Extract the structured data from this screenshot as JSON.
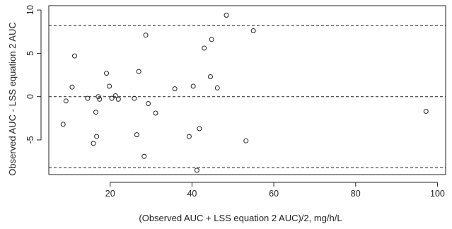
{
  "chart_data": {
    "type": "scatter",
    "title": "",
    "xlabel": "(Observed AUC + LSS equation 2 AUC)/2, mg/h/L",
    "ylabel": "Observed AUC - LSS equation 2 AUC",
    "xlim": [
      5,
      102
    ],
    "ylim": [
      -9,
      10.5
    ],
    "xticks": [
      20,
      40,
      60,
      80,
      100
    ],
    "yticks": [
      -5,
      0,
      5,
      10
    ],
    "grid": false,
    "reference_lines": [
      {
        "name": "upper limit of agreement",
        "y": 8.2,
        "style": "dashed"
      },
      {
        "name": "mean difference",
        "y": 0.0,
        "style": "dashed"
      },
      {
        "name": "lower limit of agreement",
        "y": -8.2,
        "style": "dashed"
      }
    ],
    "marker": "open-circle",
    "points": [
      {
        "x": 8.5,
        "y": -3.2
      },
      {
        "x": 9.2,
        "y": -0.5
      },
      {
        "x": 10.7,
        "y": 1.1
      },
      {
        "x": 11.3,
        "y": 4.7
      },
      {
        "x": 14.5,
        "y": -0.2
      },
      {
        "x": 15.9,
        "y": -5.4
      },
      {
        "x": 16.5,
        "y": -1.8
      },
      {
        "x": 16.7,
        "y": -4.6
      },
      {
        "x": 17.1,
        "y": 0.0
      },
      {
        "x": 17.4,
        "y": -0.3
      },
      {
        "x": 19.1,
        "y": 2.7
      },
      {
        "x": 19.8,
        "y": 1.2
      },
      {
        "x": 20.4,
        "y": -0.2
      },
      {
        "x": 21.3,
        "y": 0.1
      },
      {
        "x": 22.0,
        "y": -0.3
      },
      {
        "x": 25.9,
        "y": -0.2
      },
      {
        "x": 26.5,
        "y": -4.4
      },
      {
        "x": 27.0,
        "y": 2.9
      },
      {
        "x": 28.3,
        "y": -6.9
      },
      {
        "x": 28.7,
        "y": 7.1
      },
      {
        "x": 29.3,
        "y": -0.8
      },
      {
        "x": 31.1,
        "y": -1.9
      },
      {
        "x": 35.8,
        "y": 0.9
      },
      {
        "x": 39.3,
        "y": -4.6
      },
      {
        "x": 40.3,
        "y": 1.2
      },
      {
        "x": 41.2,
        "y": -8.5
      },
      {
        "x": 41.8,
        "y": -3.7
      },
      {
        "x": 43.0,
        "y": 5.6
      },
      {
        "x": 44.5,
        "y": 2.3
      },
      {
        "x": 44.8,
        "y": 6.6
      },
      {
        "x": 46.2,
        "y": 1.0
      },
      {
        "x": 48.4,
        "y": 9.4
      },
      {
        "x": 53.2,
        "y": -5.1
      },
      {
        "x": 55.0,
        "y": 7.6
      },
      {
        "x": 97.2,
        "y": -1.7
      }
    ]
  }
}
